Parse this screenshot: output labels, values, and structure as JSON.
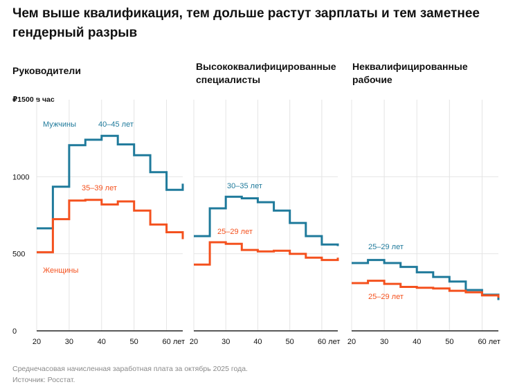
{
  "title": "Чем выше квалификация, тем дольше растут зарплаты и тем заметнее гендерный разрыв",
  "footnote": "Среднечасовая начисленная заработная плата за октябрь 2025 года.",
  "source": "Источник: Росстат.",
  "colors": {
    "men": "#1f7a9b",
    "women": "#f4511e",
    "grid": "#e4e4e4",
    "axis": "#222222"
  },
  "chart_data": {
    "type": "line",
    "step": true,
    "ylabel": "₽1500 в час",
    "ylim": [
      0,
      1500
    ],
    "xlim": [
      20,
      65
    ],
    "y_ticks": [
      0,
      500,
      1000
    ],
    "x_ticks": [
      20,
      30,
      40,
      50,
      60
    ],
    "x_tick_labels": [
      "20",
      "30",
      "40",
      "50",
      "60 лет"
    ],
    "x_bins": [
      20,
      25,
      30,
      35,
      40,
      45,
      50,
      55,
      60,
      65
    ],
    "panels": [
      {
        "title": "Руководители",
        "series": [
          {
            "name": "Мужчины",
            "values": [
              665,
              935,
              1205,
              1240,
              1265,
              1210,
              1140,
              1030,
              915,
              955
            ]
          },
          {
            "name": "Женщины",
            "values": [
              510,
              725,
              845,
              850,
              820,
              840,
              780,
              690,
              640,
              595
            ]
          }
        ],
        "annotations": {
          "men": "40–45 лет",
          "women": "35–39 лет"
        }
      },
      {
        "title": "Высококвалифицированные специалисты",
        "series": [
          {
            "name": "Мужчины",
            "values": [
              615,
              795,
              870,
              860,
              835,
              780,
              700,
              615,
              560,
              550
            ]
          },
          {
            "name": "Женщины",
            "values": [
              430,
              575,
              565,
              525,
              515,
              520,
              500,
              475,
              460,
              475
            ]
          }
        ],
        "annotations": {
          "men": "30–35 лет",
          "women": "25–29 лет"
        }
      },
      {
        "title": "Неквалифицированные рабочие",
        "series": [
          {
            "name": "Мужчины",
            "values": [
              440,
              460,
              440,
              415,
              380,
              350,
              320,
              265,
              235,
              200
            ]
          },
          {
            "name": "Женщины",
            "values": [
              310,
              325,
              305,
              285,
              280,
              275,
              260,
              250,
              230,
              215
            ]
          }
        ],
        "annotations": {
          "men": "25–29 лет",
          "women": "25–29 лет"
        }
      }
    ]
  }
}
